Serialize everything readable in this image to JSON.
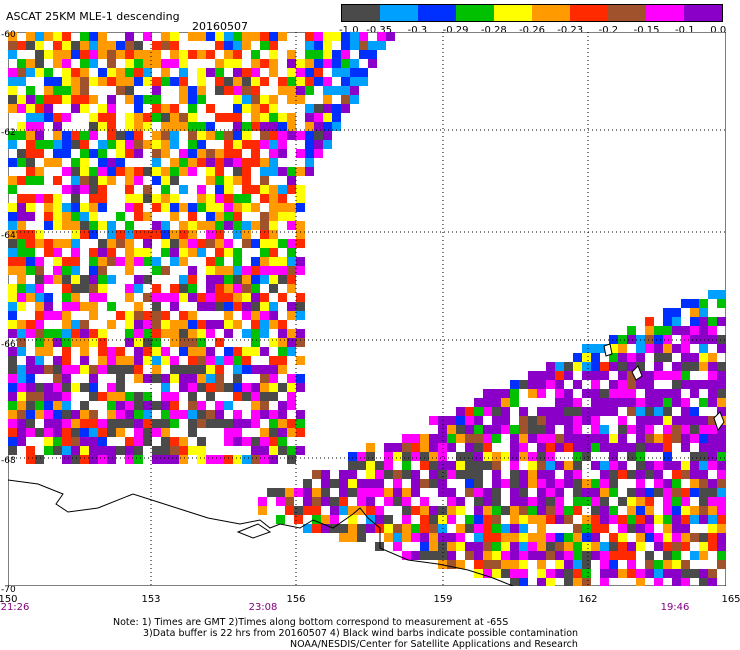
{
  "title": "ASCAT 25KM MLE-1 descending",
  "date": "20160507",
  "legend": {
    "colors": [
      "#4a4a4a",
      "#00a0ff",
      "#0030ff",
      "#00c000",
      "#ffff00",
      "#ff9a00",
      "#ff2a00",
      "#a0522d",
      "#ff00ff",
      "#8a00c8"
    ],
    "labels": [
      "-1.0",
      "-0.35",
      "-0.3",
      "-0.29",
      "-0.28",
      "-0.26",
      "-0.23",
      "-0.2",
      "-0.15",
      "-0.1",
      "0.0"
    ]
  },
  "axes": {
    "lat_labels": [
      "-60",
      "-62",
      "-64",
      "-66",
      "-68",
      "-70"
    ],
    "lon_labels": [
      "150",
      "153",
      "156",
      "159",
      "162",
      "165"
    ],
    "time_labels": [
      "21:26",
      "23:08",
      "19:46"
    ],
    "lat_range": [
      -70,
      -60
    ],
    "lon_range": [
      150,
      165
    ]
  },
  "notes": {
    "line1": "Note: 1) Times are GMT 2)Times along bottom correspond to measurement at -65S",
    "line2": "3)Data buffer is 22 hrs from 20160507 4) Black wind barbs indicate possible contamination",
    "line3": "NOAA/NESDIS/Center for Satellite Applications and Research"
  }
}
